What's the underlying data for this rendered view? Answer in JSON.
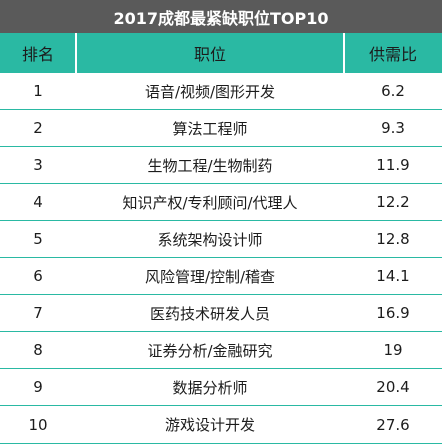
{
  "title": "2017成都最紧缺职位TOP10",
  "headers": {
    "rank": "排名",
    "position": "职位",
    "ratio": "供需比"
  },
  "rows": [
    {
      "rank": "1",
      "position": "语音/视频/图形开发",
      "ratio": "6.2"
    },
    {
      "rank": "2",
      "position": "算法工程师",
      "ratio": "9.3"
    },
    {
      "rank": "3",
      "position": "生物工程/生物制药",
      "ratio": "11.9"
    },
    {
      "rank": "4",
      "position": "知识产权/专利顾问/代理人",
      "ratio": "12.2"
    },
    {
      "rank": "5",
      "position": "系统架构设计师",
      "ratio": "12.8"
    },
    {
      "rank": "6",
      "position": "风险管理/控制/稽查",
      "ratio": "14.1"
    },
    {
      "rank": "7",
      "position": "医药技术研发人员",
      "ratio": "16.9"
    },
    {
      "rank": "8",
      "position": "证券分析/金融研究",
      "ratio": "19"
    },
    {
      "rank": "9",
      "position": "数据分析师",
      "ratio": "20.4"
    },
    {
      "rank": "10",
      "position": "游戏设计开发",
      "ratio": "27.6"
    }
  ],
  "colors": {
    "header_bg": "#2ab9a3",
    "title_bg": "#5a5a5a",
    "row_line": "#2ab9a3"
  }
}
